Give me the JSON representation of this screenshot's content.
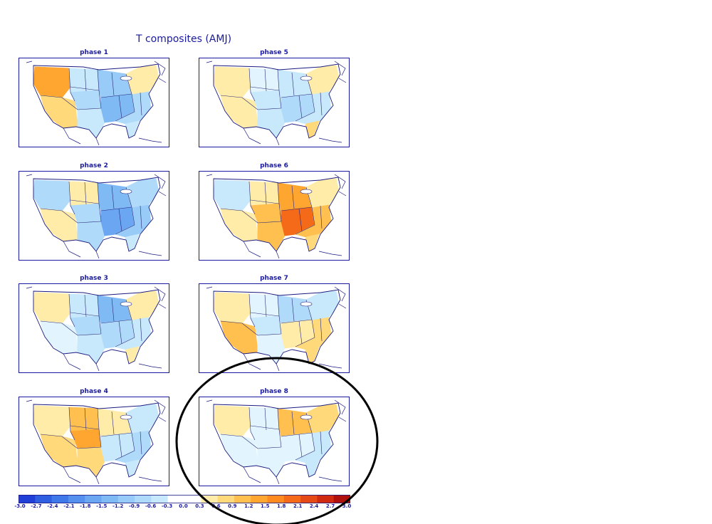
{
  "title": "T composites (AMJ)",
  "panels": [
    {
      "label": "phase 1",
      "anomalies": {
        "pnw": 1.2,
        "sw": 0.6,
        "nplains": -0.6,
        "splains": -0.9,
        "midwest": -1.2,
        "south": -1.5,
        "southeast": -0.9,
        "northeast": 0.3,
        "texas": -0.6,
        "florida": -0.6
      }
    },
    {
      "label": "phase 5",
      "anomalies": {
        "pnw": 0.3,
        "sw": 0.3,
        "nplains": -0.3,
        "splains": -0.6,
        "midwest": -0.6,
        "south": -0.9,
        "southeast": -0.6,
        "northeast": 0.3,
        "texas": -0.6,
        "florida": 0.6
      }
    },
    {
      "label": "phase 2",
      "anomalies": {
        "pnw": -0.9,
        "sw": 0.3,
        "nplains": 0.3,
        "splains": -0.9,
        "midwest": -1.5,
        "south": -1.8,
        "southeast": -1.2,
        "northeast": -0.9,
        "texas": -0.9,
        "florida": -0.6
      }
    },
    {
      "label": "phase 6",
      "anomalies": {
        "pnw": -0.6,
        "sw": 0.3,
        "nplains": 0.3,
        "splains": 0.9,
        "midwest": 1.2,
        "south": 1.8,
        "southeast": 0.9,
        "northeast": 0.3,
        "texas": 0.9,
        "florida": 0.6
      }
    },
    {
      "label": "phase 3",
      "anomalies": {
        "pnw": 0.3,
        "sw": -0.3,
        "nplains": -0.6,
        "splains": -0.9,
        "midwest": -1.5,
        "south": -0.9,
        "southeast": -0.6,
        "northeast": 0.3,
        "texas": -0.6,
        "florida": 0.3
      }
    },
    {
      "label": "phase 7",
      "anomalies": {
        "pnw": 0.3,
        "sw": 0.9,
        "nplains": -0.3,
        "splains": -0.6,
        "midwest": -0.9,
        "south": 0.3,
        "southeast": 0.6,
        "northeast": -0.6,
        "texas": -0.3,
        "florida": 0.6
      }
    },
    {
      "label": "phase 4",
      "anomalies": {
        "pnw": 0.3,
        "sw": 0.6,
        "nplains": 0.9,
        "splains": 1.2,
        "midwest": 0.3,
        "south": -0.6,
        "southeast": -0.9,
        "northeast": -0.6,
        "texas": 0.6,
        "florida": -0.6
      }
    },
    {
      "label": "phase 8",
      "anomalies": {
        "pnw": 0.3,
        "sw": -0.3,
        "nplains": -0.3,
        "splains": -0.3,
        "midwest": 0.9,
        "south": -0.3,
        "southeast": -0.6,
        "northeast": 0.6,
        "texas": -0.3,
        "florida": -0.6
      }
    }
  ],
  "colorbar": {
    "ticks": [
      "-3.0",
      "-2.7",
      "-2.4",
      "-2.1",
      "-1.8",
      "-1.5",
      "-1.2",
      "-0.9",
      "-0.6",
      "-0.3",
      "0.0",
      "0.3",
      "0.6",
      "0.9",
      "1.2",
      "1.5",
      "1.8",
      "2.1",
      "2.4",
      "2.7",
      "3.0"
    ],
    "colors": [
      "#1f3fd6",
      "#2f5fe0",
      "#3f78e8",
      "#5590ee",
      "#6aa6f2",
      "#80baf5",
      "#98cbf7",
      "#b0daf9",
      "#c8e8fb",
      "#e2f4fd",
      "#fffbd8",
      "#ffeca8",
      "#ffd97a",
      "#ffc050",
      "#ffa630",
      "#ff8a20",
      "#f56a18",
      "#e64a14",
      "#d02a10",
      "#b0100c"
    ],
    "neutral_color": "#ffffff"
  },
  "highlight": {
    "target": "phase 8",
    "stroke_color": "#000000"
  }
}
